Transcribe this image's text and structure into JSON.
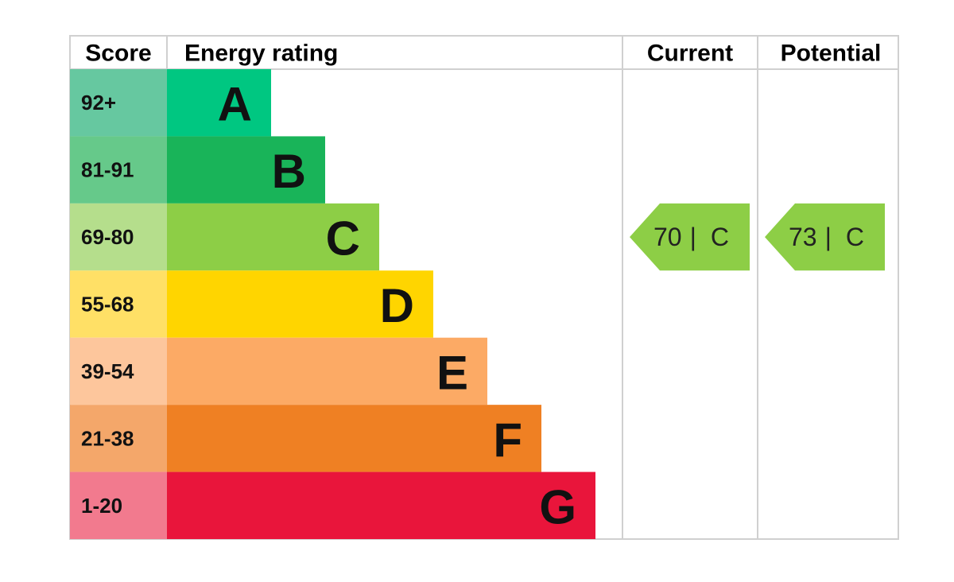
{
  "header": {
    "score": "Score",
    "rating": "Energy rating",
    "current": "Current",
    "potential": "Potential"
  },
  "rows": [
    {
      "score": "92+",
      "band": "A",
      "color": "#00c781",
      "score_color": "#66c8a0"
    },
    {
      "score": "81-91",
      "band": "B",
      "color": "#19b459",
      "score_color": "#66c98a"
    },
    {
      "score": "69-80",
      "band": "C",
      "color": "#8dce46",
      "score_color": "#b5de8c"
    },
    {
      "score": "55-68",
      "band": "D",
      "color": "#ffd500",
      "score_color": "#ffe066"
    },
    {
      "score": "39-54",
      "band": "E",
      "color": "#fcaa65",
      "score_color": "#fdc69c"
    },
    {
      "score": "21-38",
      "band": "F",
      "color": "#ef8023",
      "score_color": "#f4a76a"
    },
    {
      "score": "1-20",
      "band": "G",
      "color": "#e9153b",
      "score_color": "#f27a8e"
    }
  ],
  "current": {
    "value": 70,
    "separator": "|",
    "band": "C",
    "color": "#8dce46"
  },
  "potential": {
    "value": 73,
    "separator": "|",
    "band": "C",
    "color": "#8dce46"
  }
}
